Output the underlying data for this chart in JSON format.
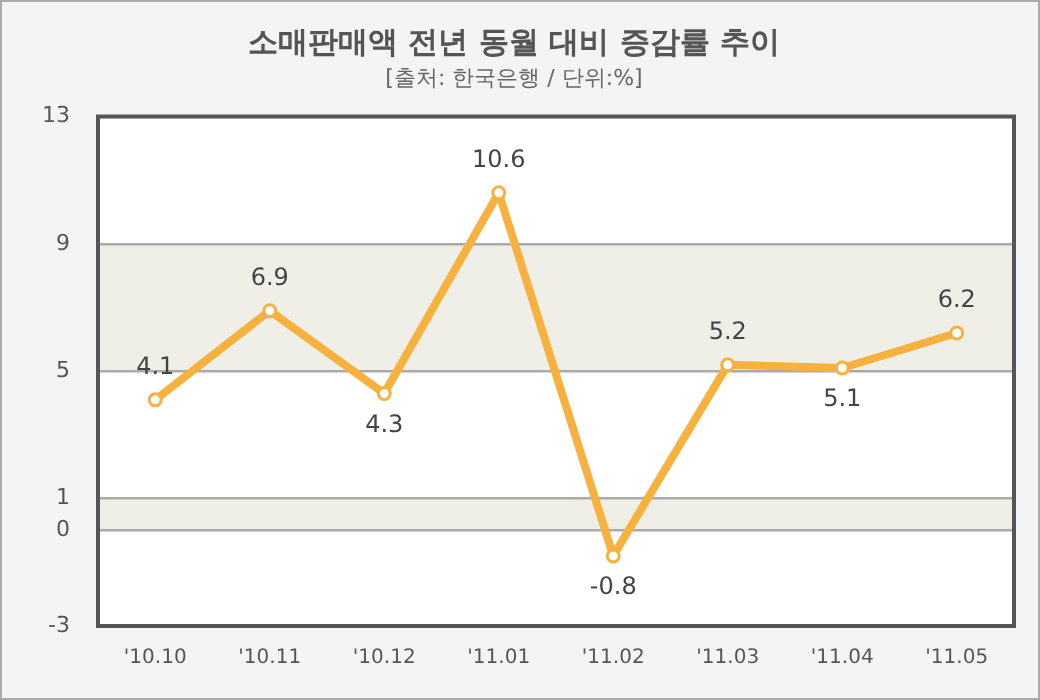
{
  "chart_data": {
    "type": "line",
    "title": "소매판매액 전년 동월 대비 증감률 추이",
    "subtitle": "[출처: 한국은행 / 단위:%]",
    "categories": [
      "'10.10",
      "'10.11",
      "'10.12",
      "'11.01",
      "'11.02",
      "'11.03",
      "'11.04",
      "'11.05"
    ],
    "values": [
      4.1,
      6.9,
      4.3,
      10.6,
      -0.8,
      5.2,
      5.1,
      6.2
    ],
    "color": "#f6b13f",
    "ylim": [
      -3,
      13
    ],
    "yticks": [
      -3,
      0,
      1,
      5,
      9,
      13
    ],
    "grid": "y",
    "marker": "circle",
    "line_style": "solid",
    "data_labels": true,
    "bands": [
      {
        "axis": "y",
        "from": 5,
        "to": 9,
        "color": "#efefe8"
      },
      {
        "axis": "y",
        "from": 0,
        "to": 1,
        "color": "#efefe8"
      }
    ]
  }
}
